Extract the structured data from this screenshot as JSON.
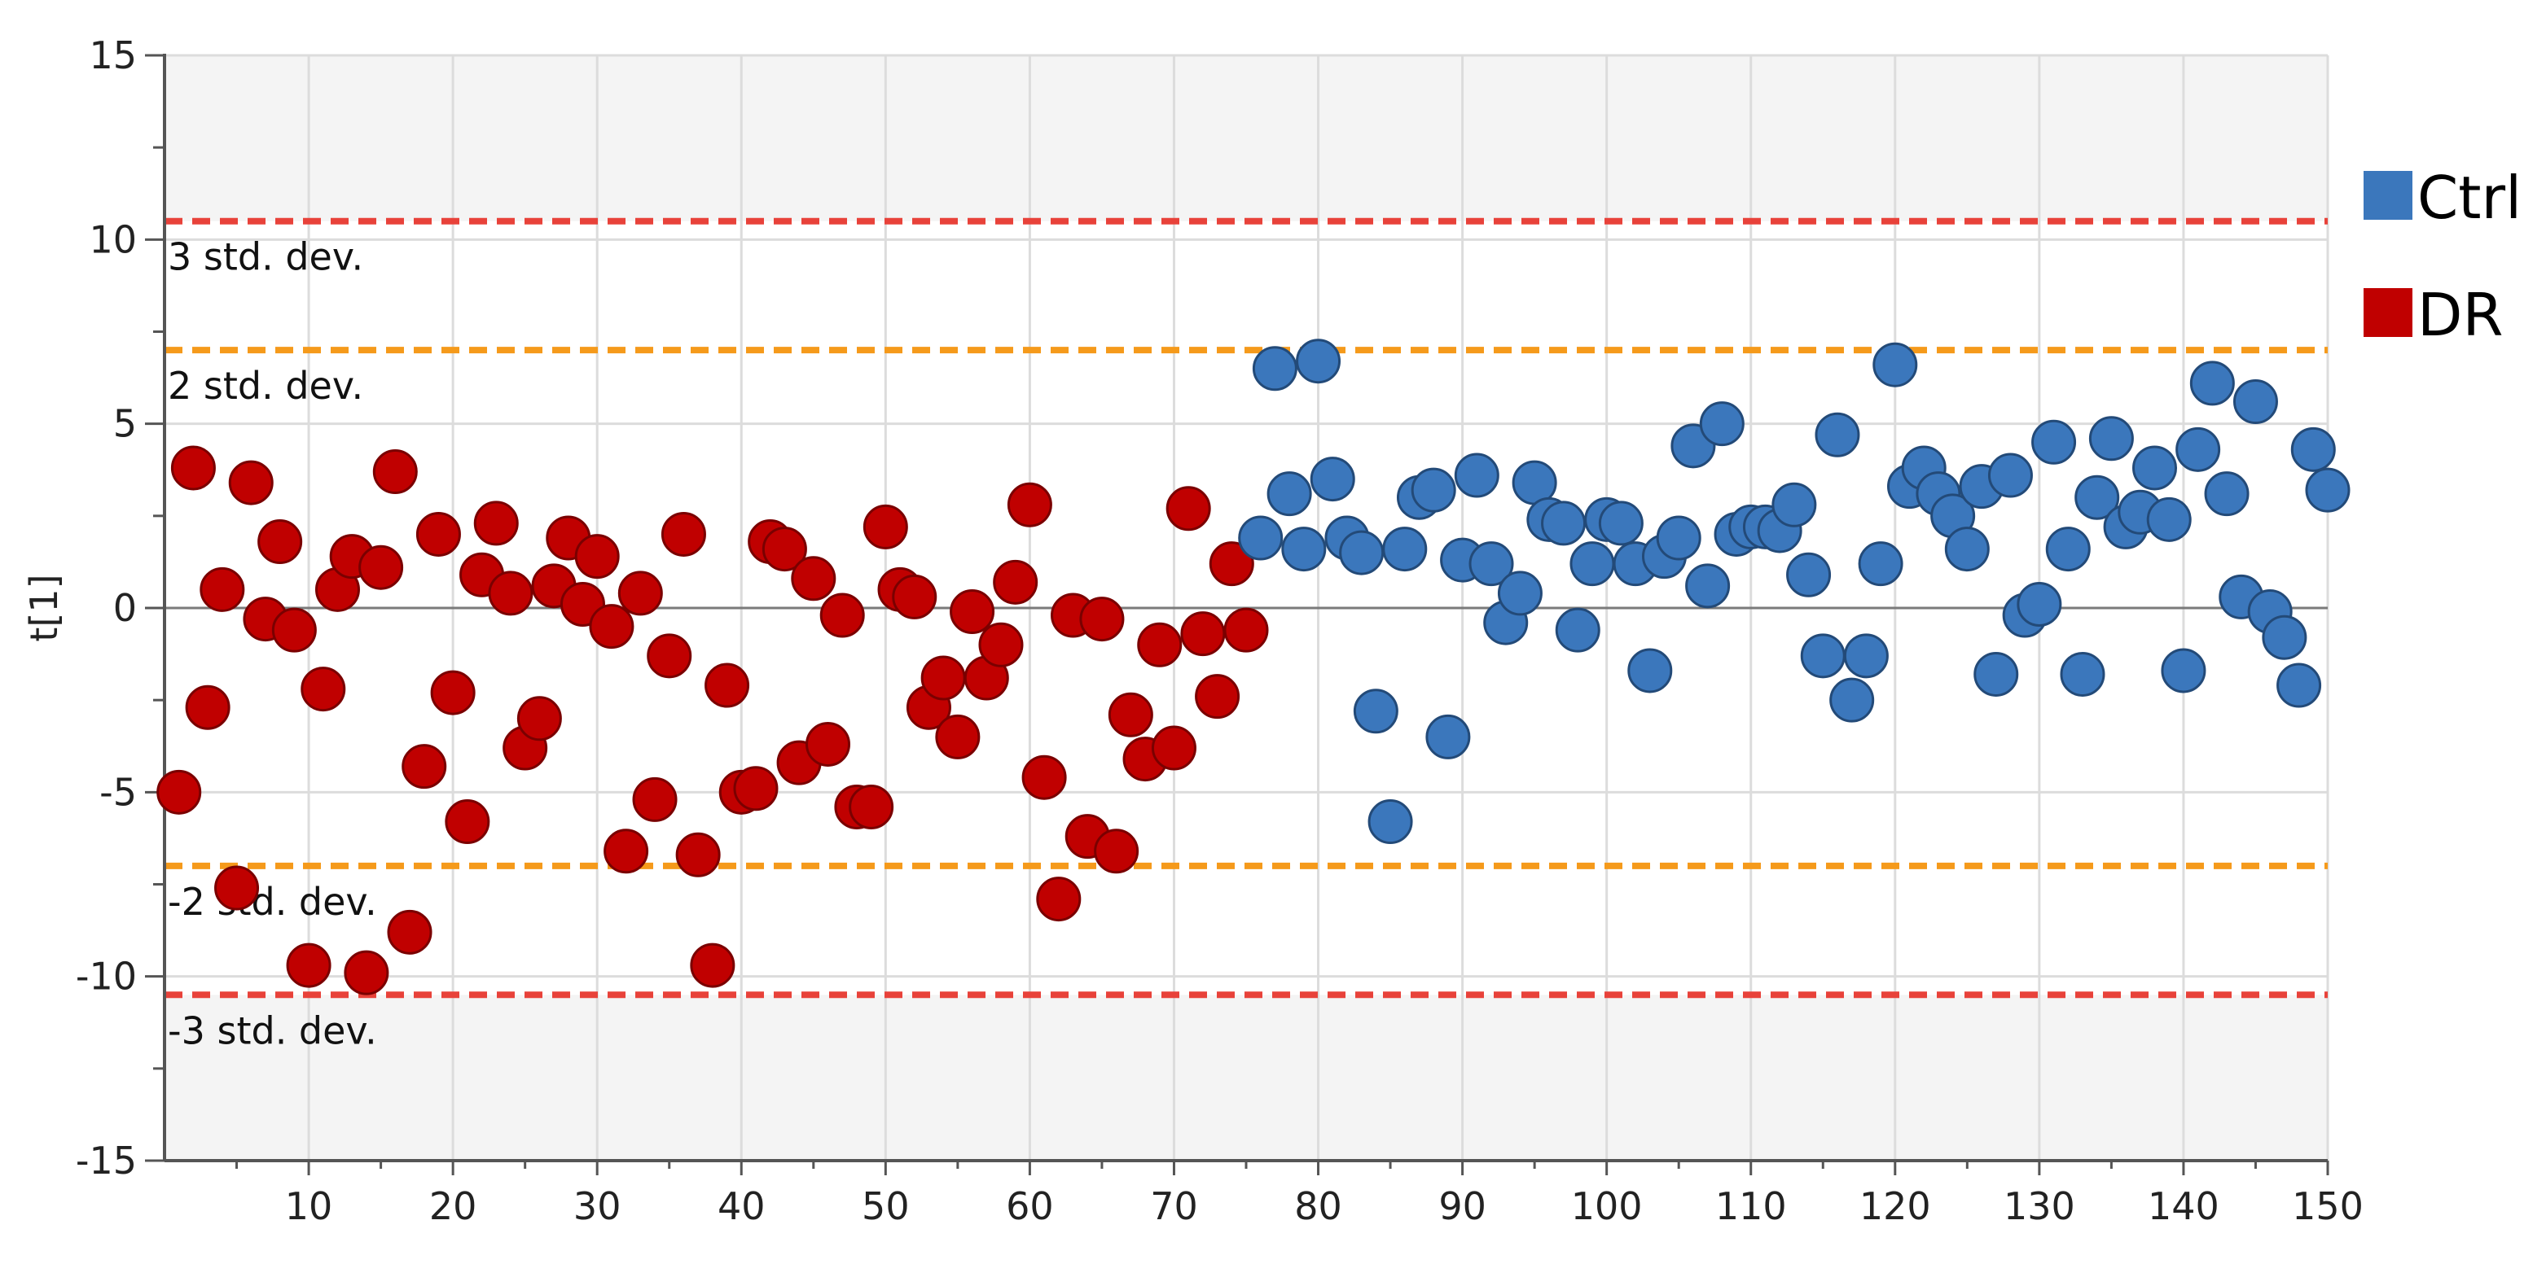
{
  "chart_data": {
    "type": "scatter",
    "ylabel": "t[1]",
    "xlabel": "",
    "xlim": [
      0,
      150
    ],
    "ylim": [
      -15,
      15
    ],
    "x_ticks": [
      10,
      20,
      30,
      40,
      50,
      60,
      70,
      80,
      90,
      100,
      110,
      120,
      130,
      140,
      150
    ],
    "y_ticks": [
      15,
      10,
      5,
      0,
      -5,
      -10,
      -15
    ],
    "grid": true,
    "legend_position": "right",
    "limit_lines": [
      {
        "value": 10.5,
        "label": "3 std. dev.",
        "color": "#e8423a"
      },
      {
        "value": 7.0,
        "label": "2 std. dev.",
        "color": "#f59a1b"
      },
      {
        "value": -7.0,
        "label": "-2 std. dev.",
        "color": "#f59a1b"
      },
      {
        "value": -10.5,
        "label": "-3 std. dev.",
        "color": "#e8423a"
      }
    ],
    "series": [
      {
        "name": "DR",
        "color": "#c00000",
        "stroke": "#7a0000",
        "points": [
          [
            1,
            -5.0
          ],
          [
            2,
            3.8
          ],
          [
            3,
            -2.7
          ],
          [
            4,
            0.5
          ],
          [
            5,
            -7.6
          ],
          [
            6,
            3.4
          ],
          [
            7,
            -0.3
          ],
          [
            8,
            1.8
          ],
          [
            9,
            -0.6
          ],
          [
            10,
            -9.7
          ],
          [
            11,
            -2.2
          ],
          [
            12,
            0.5
          ],
          [
            13,
            1.4
          ],
          [
            14,
            -9.9
          ],
          [
            15,
            1.1
          ],
          [
            16,
            3.7
          ],
          [
            17,
            -8.8
          ],
          [
            18,
            -4.3
          ],
          [
            19,
            2.0
          ],
          [
            20,
            -2.3
          ],
          [
            21,
            -5.8
          ],
          [
            22,
            0.9
          ],
          [
            23,
            2.3
          ],
          [
            24,
            0.4
          ],
          [
            25,
            -3.8
          ],
          [
            26,
            -3.0
          ],
          [
            27,
            0.6
          ],
          [
            28,
            1.9
          ],
          [
            29,
            0.1
          ],
          [
            30,
            1.4
          ],
          [
            31,
            -0.5
          ],
          [
            32,
            -6.6
          ],
          [
            33,
            0.4
          ],
          [
            34,
            -5.2
          ],
          [
            35,
            -1.3
          ],
          [
            36,
            2.0
          ],
          [
            37,
            -6.7
          ],
          [
            38,
            -9.7
          ],
          [
            39,
            -2.1
          ],
          [
            40,
            -5.0
          ],
          [
            41,
            -4.9
          ],
          [
            42,
            1.8
          ],
          [
            43,
            1.6
          ],
          [
            44,
            -4.2
          ],
          [
            45,
            0.8
          ],
          [
            46,
            -3.7
          ],
          [
            47,
            -0.2
          ],
          [
            48,
            -5.4
          ],
          [
            49,
            -5.4
          ],
          [
            50,
            2.2
          ],
          [
            51,
            0.5
          ],
          [
            52,
            0.3
          ],
          [
            53,
            -2.7
          ],
          [
            54,
            -1.9
          ],
          [
            55,
            -3.5
          ],
          [
            56,
            -0.1
          ],
          [
            57,
            -1.9
          ],
          [
            58,
            -1.0
          ],
          [
            59,
            0.7
          ],
          [
            60,
            2.8
          ],
          [
            61,
            -4.6
          ],
          [
            62,
            -7.9
          ],
          [
            63,
            -0.2
          ],
          [
            64,
            -6.2
          ],
          [
            65,
            -0.3
          ],
          [
            66,
            -6.6
          ],
          [
            67,
            -2.9
          ],
          [
            68,
            -4.1
          ],
          [
            69,
            -1.0
          ],
          [
            70,
            -3.8
          ],
          [
            71,
            2.7
          ],
          [
            72,
            -0.7
          ],
          [
            73,
            -2.4
          ],
          [
            74,
            1.2
          ],
          [
            75,
            -0.6
          ]
        ]
      },
      {
        "name": "Ctrl",
        "color": "#3b77bc",
        "stroke": "#234a78",
        "points": [
          [
            76,
            1.9
          ],
          [
            77,
            6.5
          ],
          [
            78,
            3.1
          ],
          [
            79,
            1.6
          ],
          [
            80,
            6.7
          ],
          [
            81,
            3.5
          ],
          [
            82,
            1.9
          ],
          [
            83,
            1.5
          ],
          [
            84,
            -2.8
          ],
          [
            85,
            -5.8
          ],
          [
            86,
            1.6
          ],
          [
            87,
            3.0
          ],
          [
            88,
            3.2
          ],
          [
            89,
            -3.5
          ],
          [
            90,
            1.3
          ],
          [
            91,
            3.6
          ],
          [
            92,
            1.2
          ],
          [
            93,
            -0.4
          ],
          [
            94,
            0.4
          ],
          [
            95,
            3.4
          ],
          [
            96,
            2.4
          ],
          [
            97,
            2.3
          ],
          [
            98,
            -0.6
          ],
          [
            99,
            1.2
          ],
          [
            100,
            2.4
          ],
          [
            101,
            2.3
          ],
          [
            102,
            1.2
          ],
          [
            103,
            -1.7
          ],
          [
            104,
            1.4
          ],
          [
            105,
            1.9
          ],
          [
            106,
            4.4
          ],
          [
            107,
            0.6
          ],
          [
            108,
            5.0
          ],
          [
            109,
            2.0
          ],
          [
            110,
            2.2
          ],
          [
            111,
            2.2
          ],
          [
            112,
            2.1
          ],
          [
            113,
            2.8
          ],
          [
            114,
            0.9
          ],
          [
            115,
            -1.3
          ],
          [
            116,
            4.7
          ],
          [
            117,
            -2.5
          ],
          [
            118,
            -1.3
          ],
          [
            119,
            1.2
          ],
          [
            120,
            6.6
          ],
          [
            121,
            3.3
          ],
          [
            122,
            3.8
          ],
          [
            123,
            3.1
          ],
          [
            124,
            2.5
          ],
          [
            125,
            1.6
          ],
          [
            126,
            3.3
          ],
          [
            127,
            -1.8
          ],
          [
            128,
            3.6
          ],
          [
            129,
            -0.2
          ],
          [
            130,
            0.1
          ],
          [
            131,
            4.5
          ],
          [
            132,
            1.6
          ],
          [
            133,
            -1.8
          ],
          [
            134,
            3.0
          ],
          [
            135,
            4.6
          ],
          [
            136,
            2.2
          ],
          [
            137,
            2.6
          ],
          [
            138,
            3.8
          ],
          [
            139,
            2.4
          ],
          [
            140,
            -1.7
          ],
          [
            141,
            4.3
          ],
          [
            142,
            6.1
          ],
          [
            143,
            3.1
          ],
          [
            144,
            0.3
          ],
          [
            145,
            5.6
          ],
          [
            146,
            -0.1
          ],
          [
            147,
            -0.8
          ],
          [
            148,
            -2.1
          ],
          [
            149,
            4.3
          ],
          [
            150,
            3.2
          ]
        ]
      }
    ],
    "legend": [
      {
        "label": "Ctrl",
        "color": "#3b77bc"
      },
      {
        "label": "DR",
        "color": "#c00000"
      }
    ]
  }
}
